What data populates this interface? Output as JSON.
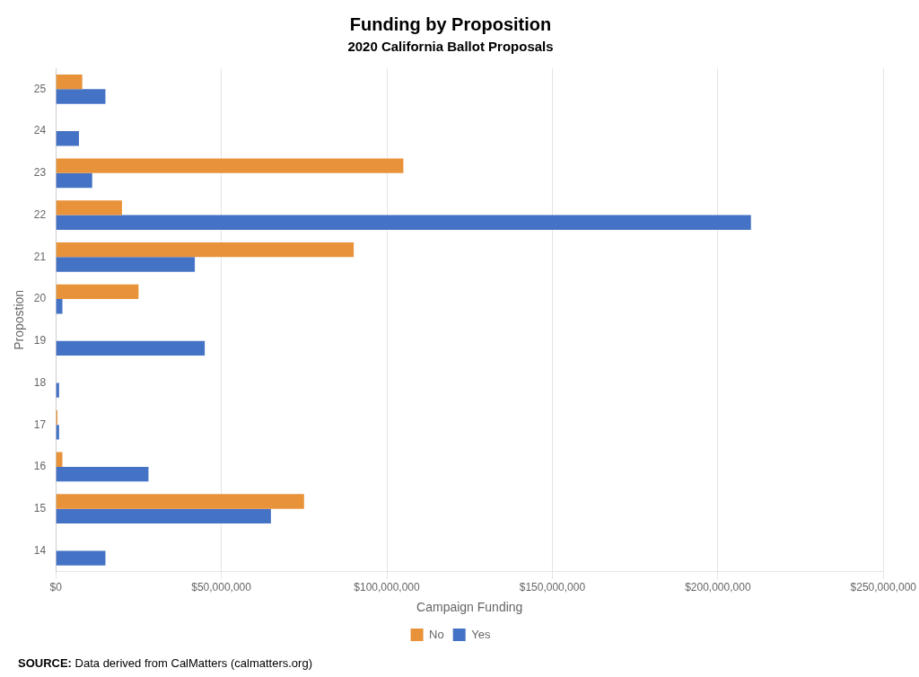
{
  "chart_data": {
    "type": "bar",
    "orientation": "horizontal",
    "title": "Funding by Proposition",
    "subtitle": "2020 California Ballot Proposals",
    "x_label": "Campaign Funding",
    "y_label": "Propostion",
    "source_label": "SOURCE:",
    "source": "Data derived from CalMatters (calmatters.org)",
    "categories": [
      "14",
      "15",
      "16",
      "17",
      "18",
      "19",
      "20",
      "21",
      "22",
      "23",
      "24",
      "25"
    ],
    "series": [
      {
        "name": "No",
        "color": "#E8923A",
        "values": [
          0,
          75000000,
          2000000,
          500000,
          0,
          0,
          25000000,
          90000000,
          20000000,
          105000000,
          0,
          8000000
        ]
      },
      {
        "name": "Yes",
        "color": "#4472C4",
        "values": [
          15000000,
          65000000,
          28000000,
          1000000,
          1000000,
          45000000,
          2000000,
          42000000,
          210000000,
          11000000,
          7000000,
          15000000
        ]
      }
    ],
    "xlim": [
      0,
      250000000
    ],
    "xticks": [
      {
        "value": 0,
        "label": "$0"
      },
      {
        "value": 50000000,
        "label": "$50,000,000"
      },
      {
        "value": 100000000,
        "label": "$100,000,000"
      },
      {
        "value": 150000000,
        "label": "$150,000,000"
      },
      {
        "value": 200000000,
        "label": "$200,000,000"
      },
      {
        "value": 250000000,
        "label": "$250,000,000"
      }
    ],
    "grid": true,
    "legend": "bottom"
  }
}
